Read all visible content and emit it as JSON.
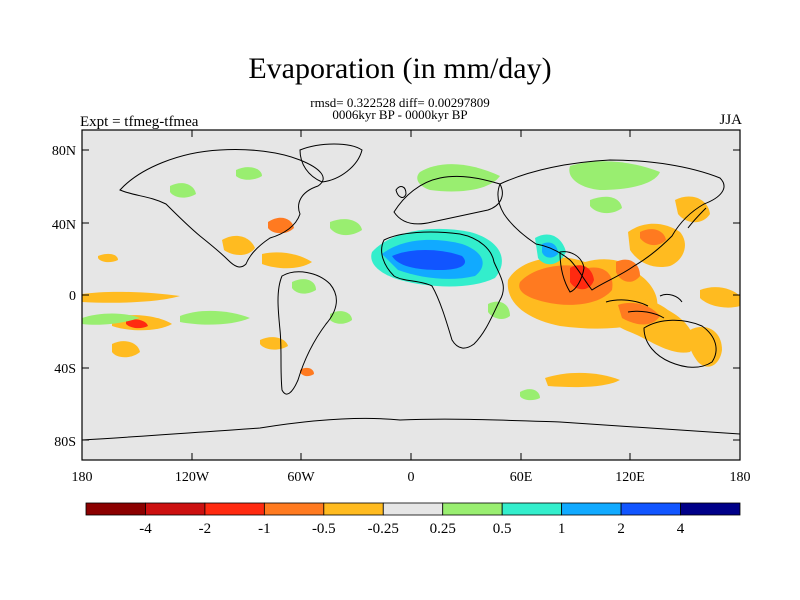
{
  "title": "Evaporation (in mm/day)",
  "stats_line": "rmsd= 0.322528 diff= 0.00297809",
  "period_line": "0006kyr BP - 0000kyr BP",
  "left_tag": "Expt = tfmeg-tfmea",
  "right_tag": "JJA",
  "lat_labels": [
    "80N",
    "40N",
    "0",
    "40S",
    "80S"
  ],
  "lon_labels": [
    "180",
    "120W",
    "60W",
    "0",
    "60E",
    "120E",
    "180"
  ],
  "colorbar": {
    "colors": [
      "#8b0000",
      "#cc1010",
      "#ff2a10",
      "#ff7a20",
      "#ffbb20",
      "#e6e6e6",
      "#99ee70",
      "#33eecc",
      "#11aaff",
      "#1155ff",
      "#000088"
    ],
    "labels": [
      "-4",
      "-2",
      "-1",
      "-0.5",
      "-0.25",
      "0.25",
      "0.5",
      "1",
      "2",
      "4"
    ]
  },
  "map_colors": {
    "ocean_background": "#e6e6e6",
    "coastline": "#000000"
  }
}
